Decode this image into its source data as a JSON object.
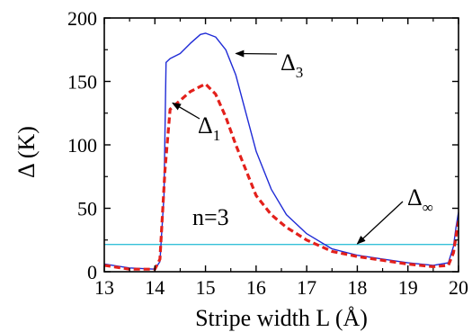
{
  "chart_data": {
    "type": "line",
    "xlabel": "Stripe width L (Å)",
    "ylabel": "Δ (K)",
    "xlim": [
      13,
      20
    ],
    "ylim": [
      0,
      200
    ],
    "xticks": [
      "13",
      "14",
      "15",
      "16",
      "17",
      "18",
      "19",
      "20"
    ],
    "yticks": [
      "0",
      "50",
      "100",
      "150",
      "200"
    ],
    "grid": false,
    "series": [
      {
        "name": "Δ3",
        "color": "#1f2bd6",
        "style": "solid",
        "x": [
          13,
          13.5,
          14.0,
          14.1,
          14.18,
          14.22,
          14.3,
          14.5,
          14.7,
          14.9,
          15.0,
          15.2,
          15.4,
          15.6,
          15.8,
          16.0,
          16.3,
          16.6,
          17.0,
          17.5,
          18.0,
          18.5,
          19.0,
          19.5,
          19.8,
          19.9,
          19.95,
          20.0
        ],
        "y": [
          6,
          3,
          2,
          8,
          60,
          165,
          168,
          172,
          180,
          187,
          188,
          185,
          175,
          155,
          125,
          95,
          65,
          45,
          30,
          18,
          13,
          10,
          7,
          5,
          7,
          20,
          35,
          47
        ]
      },
      {
        "name": "Δ1",
        "color": "#e3201b",
        "style": "dashed",
        "x": [
          13,
          13.5,
          14.0,
          14.1,
          14.2,
          14.3,
          14.5,
          14.7,
          14.9,
          15.0,
          15.2,
          15.4,
          15.6,
          15.8,
          16.0,
          16.3,
          16.6,
          17.0,
          17.5,
          18.0,
          18.5,
          19.0,
          19.5,
          19.8,
          19.9,
          19.95,
          20.0
        ],
        "y": [
          5,
          2,
          2,
          10,
          80,
          128,
          135,
          142,
          146,
          148,
          140,
          122,
          100,
          80,
          60,
          45,
          35,
          25,
          16,
          12,
          9,
          6,
          4,
          5,
          15,
          28,
          40
        ]
      },
      {
        "name": "Δ∞",
        "color": "#35c0d9",
        "style": "solid",
        "x": [
          13,
          20
        ],
        "y": [
          21.5,
          21.5
        ]
      }
    ],
    "annotations": [
      {
        "text": "Δ",
        "sub": "3",
        "points_to_x": 15.6,
        "points_to_y": 172
      },
      {
        "text": "Δ",
        "sub": "1",
        "points_to_x": 14.35,
        "points_to_y": 133
      },
      {
        "text": "Δ",
        "sub": "∞",
        "points_to_x": 18.0,
        "points_to_y": 22
      },
      {
        "text": "n=3"
      }
    ]
  }
}
